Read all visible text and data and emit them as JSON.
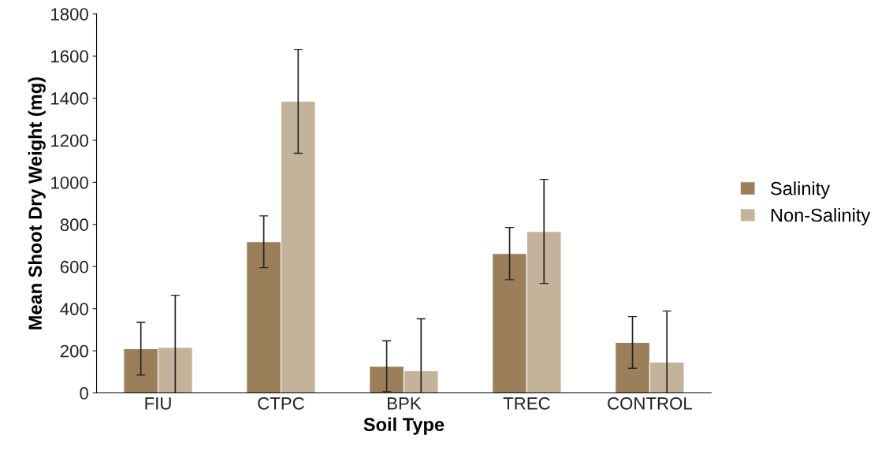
{
  "chart_data": {
    "type": "bar",
    "xlabel": "Soil Type",
    "ylabel": "Mean Shoot Dry Weight (mg)",
    "categories": [
      "FIU",
      "CTPC",
      "BPK",
      "TREC",
      "CONTROL"
    ],
    "series": [
      {
        "name": "Salinity",
        "color": "#9a7f5a",
        "values": [
          210,
          718,
          127,
          662,
          240
        ],
        "errors": [
          125,
          123,
          120,
          124,
          123
        ]
      },
      {
        "name": "Non-Salinity",
        "color": "#c4b39b",
        "values": [
          217,
          1385,
          105,
          767,
          146
        ],
        "errors": [
          247,
          247,
          247,
          247,
          243
        ]
      }
    ],
    "ylim": [
      0,
      1800
    ],
    "yticks": [
      0,
      200,
      400,
      600,
      800,
      1000,
      1200,
      1400,
      1600,
      1800
    ],
    "grid": false,
    "legend": "right"
  }
}
